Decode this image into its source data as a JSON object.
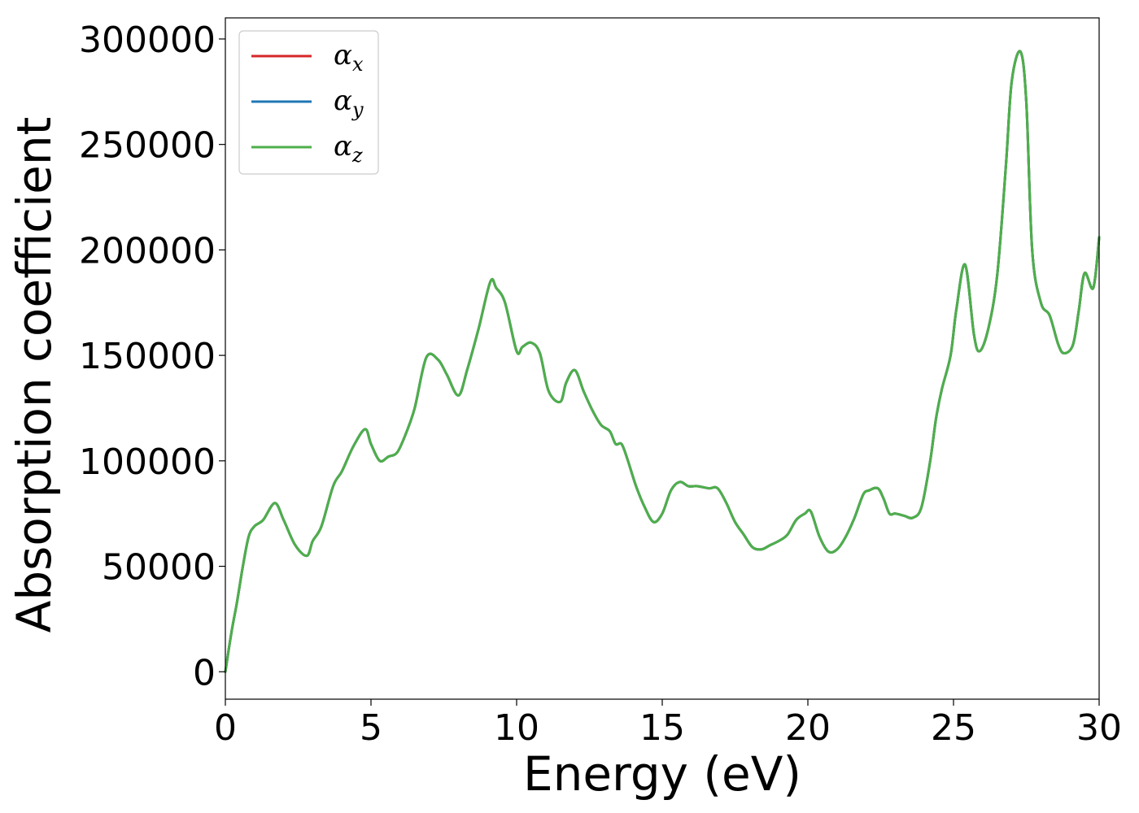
{
  "chart_data": {
    "type": "line",
    "title": "",
    "xlabel": "Energy (eV)",
    "ylabel": "Absorption coefficient",
    "xlim": [
      0,
      30
    ],
    "ylim": [
      -13000,
      310000
    ],
    "xticks": [
      0,
      5,
      10,
      15,
      20,
      25,
      30
    ],
    "yticks": [
      0,
      50000,
      100000,
      150000,
      200000,
      250000,
      300000
    ],
    "grid": false,
    "legend_position": "top-left",
    "x": [
      0,
      0.2,
      0.4,
      0.6,
      0.8,
      1.0,
      1.3,
      1.7,
      2.0,
      2.4,
      2.8,
      3.0,
      3.3,
      3.7,
      4.0,
      4.4,
      4.8,
      5.0,
      5.3,
      5.6,
      5.9,
      6.2,
      6.5,
      6.9,
      7.3,
      7.6,
      8.0,
      8.3,
      8.7,
      9.1,
      9.3,
      9.6,
      10.0,
      10.2,
      10.5,
      10.8,
      11.1,
      11.5,
      11.7,
      12.0,
      12.3,
      12.6,
      12.9,
      13.2,
      13.4,
      13.6,
      13.8,
      14.1,
      14.4,
      14.7,
      15.0,
      15.3,
      15.6,
      15.9,
      16.2,
      16.6,
      16.9,
      17.2,
      17.5,
      17.8,
      18.1,
      18.4,
      18.7,
      19.0,
      19.3,
      19.6,
      19.9,
      20.1,
      20.4,
      20.7,
      21.0,
      21.3,
      21.6,
      21.9,
      22.1,
      22.4,
      22.6,
      22.8,
      23.0,
      23.3,
      23.6,
      23.9,
      24.2,
      24.4,
      24.6,
      24.9,
      25.1,
      25.4,
      25.7,
      25.9,
      26.2,
      26.5,
      26.8,
      27.0,
      27.3,
      27.5,
      27.7,
      28.0,
      28.3,
      28.6,
      28.8,
      29.1,
      29.3,
      29.5,
      29.8,
      30.0
    ],
    "series": [
      {
        "name": "αx",
        "color": "#d62728",
        "values": [
          0,
          18000,
          33000,
          50000,
          64000,
          69000,
          72000,
          80000,
          72000,
          60000,
          55000,
          62000,
          69000,
          88000,
          95000,
          107000,
          115000,
          108000,
          100000,
          102000,
          104000,
          113000,
          125000,
          149000,
          148000,
          141000,
          131000,
          143000,
          163000,
          185000,
          182000,
          175000,
          152000,
          154000,
          156000,
          151000,
          133000,
          128000,
          137000,
          143000,
          133000,
          124000,
          117000,
          114000,
          108000,
          108000,
          101000,
          88000,
          78000,
          71000,
          75000,
          86000,
          90000,
          88000,
          88000,
          87000,
          87000,
          80000,
          71000,
          65000,
          59000,
          58000,
          60000,
          62000,
          65000,
          72000,
          75000,
          76000,
          64000,
          57000,
          58000,
          64000,
          73000,
          84000,
          86000,
          87000,
          82000,
          75000,
          75000,
          74000,
          73000,
          78000,
          100000,
          120000,
          134000,
          150000,
          172000,
          193000,
          160000,
          152000,
          163000,
          188000,
          240000,
          280000,
          294000,
          270000,
          200000,
          175000,
          169000,
          155000,
          151000,
          155000,
          171000,
          189000,
          182000,
          206000
        ]
      },
      {
        "name": "αy",
        "color": "#1f77b4",
        "values": [
          0,
          18000,
          33000,
          50000,
          64000,
          69000,
          72000,
          80000,
          72000,
          60000,
          55000,
          62000,
          69000,
          88000,
          95000,
          107000,
          115000,
          108000,
          100000,
          102000,
          104000,
          113000,
          125000,
          149000,
          148000,
          141000,
          131000,
          143000,
          163000,
          185000,
          182000,
          175000,
          152000,
          154000,
          156000,
          151000,
          133000,
          128000,
          137000,
          143000,
          133000,
          124000,
          117000,
          114000,
          108000,
          108000,
          101000,
          88000,
          78000,
          71000,
          75000,
          86000,
          90000,
          88000,
          88000,
          87000,
          87000,
          80000,
          71000,
          65000,
          59000,
          58000,
          60000,
          62000,
          65000,
          72000,
          75000,
          76000,
          64000,
          57000,
          58000,
          64000,
          73000,
          84000,
          86000,
          87000,
          82000,
          75000,
          75000,
          74000,
          73000,
          78000,
          100000,
          120000,
          134000,
          150000,
          172000,
          193000,
          160000,
          152000,
          163000,
          188000,
          240000,
          280000,
          294000,
          270000,
          200000,
          175000,
          169000,
          155000,
          151000,
          155000,
          171000,
          189000,
          182000,
          206000
        ]
      },
      {
        "name": "αz",
        "color": "#4daf4a",
        "values": [
          0,
          18000,
          33000,
          50000,
          64000,
          69000,
          72000,
          80000,
          72000,
          60000,
          55000,
          62000,
          69000,
          88000,
          95000,
          107000,
          115000,
          108000,
          100000,
          102000,
          104000,
          113000,
          125000,
          149000,
          148000,
          141000,
          131000,
          143000,
          163000,
          185000,
          182000,
          175000,
          152000,
          154000,
          156000,
          151000,
          133000,
          128000,
          137000,
          143000,
          133000,
          124000,
          117000,
          114000,
          108000,
          108000,
          101000,
          88000,
          78000,
          71000,
          75000,
          86000,
          90000,
          88000,
          88000,
          87000,
          87000,
          80000,
          71000,
          65000,
          59000,
          58000,
          60000,
          62000,
          65000,
          72000,
          75000,
          76000,
          64000,
          57000,
          58000,
          64000,
          73000,
          84000,
          86000,
          87000,
          82000,
          75000,
          75000,
          74000,
          73000,
          78000,
          100000,
          120000,
          134000,
          150000,
          172000,
          193000,
          160000,
          152000,
          163000,
          188000,
          240000,
          280000,
          294000,
          270000,
          200000,
          175000,
          169000,
          155000,
          151000,
          155000,
          171000,
          189000,
          182000,
          206000
        ]
      }
    ],
    "legend": [
      {
        "symbol": "α",
        "sub": "x"
      },
      {
        "symbol": "α",
        "sub": "y"
      },
      {
        "symbol": "α",
        "sub": "z"
      }
    ]
  }
}
